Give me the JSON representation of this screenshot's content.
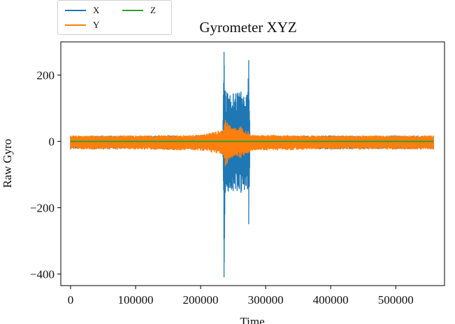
{
  "chart_data": {
    "type": "line",
    "title": "Gyrometer XYZ",
    "xlabel": "Time",
    "ylabel": "Raw Gyro",
    "xlim": [
      -15000,
      575000
    ],
    "ylim": [
      -435,
      300
    ],
    "x_ticks": [
      0,
      100000,
      200000,
      300000,
      400000,
      500000
    ],
    "x_tick_labels": [
      "0",
      "100000",
      "200000",
      "300000",
      "400000",
      "500000"
    ],
    "y_ticks": [
      200,
      0,
      -200,
      -400
    ],
    "y_tick_labels": [
      "200",
      "0",
      "−200",
      "−400"
    ],
    "grid": false,
    "legend_position": "top-left",
    "series": [
      {
        "name": "X",
        "color": "#1f77b4",
        "envelope": [
          {
            "x": 0,
            "max": 15,
            "min": -22
          },
          {
            "x": 50000,
            "max": 17,
            "min": -24
          },
          {
            "x": 100000,
            "max": 16,
            "min": -21
          },
          {
            "x": 150000,
            "max": 18,
            "min": -25
          },
          {
            "x": 200000,
            "max": 16,
            "min": -22
          },
          {
            "x": 234000,
            "max": 15,
            "min": -20
          },
          {
            "x": 235000,
            "max": 140,
            "min": -120
          },
          {
            "x": 236000,
            "max": 270,
            "min": -410
          },
          {
            "x": 238000,
            "max": 150,
            "min": -155
          },
          {
            "x": 250000,
            "max": 145,
            "min": -150
          },
          {
            "x": 262000,
            "max": 150,
            "min": -155
          },
          {
            "x": 272000,
            "max": 140,
            "min": -145
          },
          {
            "x": 274000,
            "max": 245,
            "min": -250
          },
          {
            "x": 276000,
            "max": 18,
            "min": -24
          },
          {
            "x": 350000,
            "max": 16,
            "min": -22
          },
          {
            "x": 400000,
            "max": 18,
            "min": -25
          },
          {
            "x": 450000,
            "max": 16,
            "min": -22
          },
          {
            "x": 500000,
            "max": 18,
            "min": -24
          },
          {
            "x": 558000,
            "max": 16,
            "min": -22
          }
        ]
      },
      {
        "name": "Y",
        "color": "#ff7f0e",
        "envelope": [
          {
            "x": 0,
            "max": 18,
            "min": -25
          },
          {
            "x": 100000,
            "max": 18,
            "min": -25
          },
          {
            "x": 200000,
            "max": 20,
            "min": -28
          },
          {
            "x": 235000,
            "max": 35,
            "min": -40
          },
          {
            "x": 238000,
            "max": 65,
            "min": -75
          },
          {
            "x": 250000,
            "max": 40,
            "min": -45
          },
          {
            "x": 262000,
            "max": 45,
            "min": -50
          },
          {
            "x": 273000,
            "max": 30,
            "min": -35
          },
          {
            "x": 280000,
            "max": 20,
            "min": -28
          },
          {
            "x": 400000,
            "max": 18,
            "min": -25
          },
          {
            "x": 558000,
            "max": 18,
            "min": -25
          }
        ]
      },
      {
        "name": "Z",
        "color": "#2ca02c",
        "values": [
          [
            0,
            0
          ],
          [
            558000,
            0
          ]
        ]
      }
    ]
  }
}
